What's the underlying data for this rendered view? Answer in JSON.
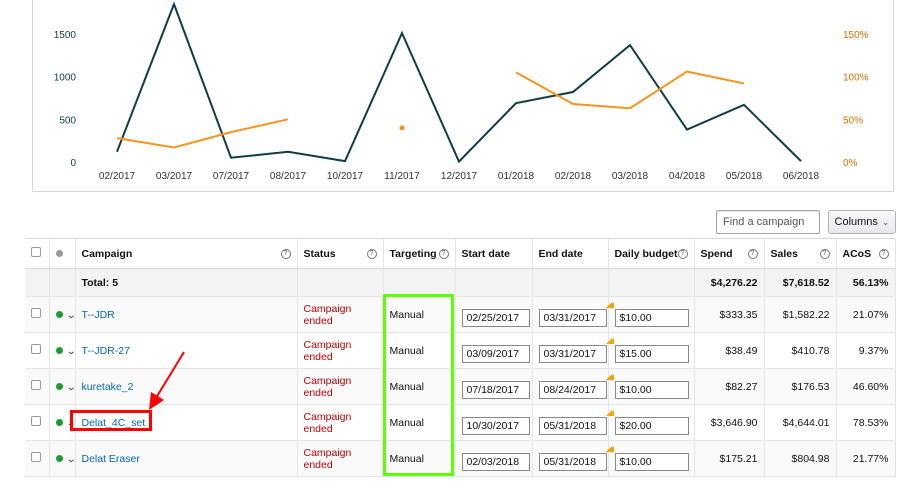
{
  "chart_data": {
    "type": "line",
    "categories": [
      "02/2017",
      "03/2017",
      "07/2017",
      "08/2017",
      "10/2017",
      "11/2017",
      "12/2017",
      "01/2018",
      "02/2018",
      "03/2018",
      "04/2018",
      "05/2018",
      "06/2018"
    ],
    "y_left_ticks": [
      "1500",
      "1000",
      "500",
      "0"
    ],
    "y_right_ticks": [
      "150%",
      "100%",
      "50%",
      "0%"
    ],
    "ylim_left": [
      0,
      1500
    ],
    "ylim_right": [
      0,
      150
    ],
    "series": [
      {
        "axis": "left",
        "color": "#0f3d45",
        "values": [
          120,
          1850,
          50,
          120,
          10,
          1510,
          5,
          690,
          820,
          1370,
          380,
          670,
          10
        ]
      },
      {
        "axis": "right",
        "color": "#f7941d",
        "values": [
          28,
          17,
          35,
          50,
          null,
          40,
          null,
          105,
          68,
          63,
          106,
          92,
          null
        ]
      }
    ]
  },
  "toolbar": {
    "search_placeholder": "Find a campaign",
    "columns_label": "Columns",
    "columns_chevron": "⌄"
  },
  "table": {
    "headers": {
      "campaign": "Campaign",
      "status": "Status",
      "targeting": "Targeting",
      "start_date": "Start date",
      "end_date": "End date",
      "daily_budget": "Daily budget",
      "spend": "Spend",
      "sales": "Sales",
      "acos": "ACoS"
    },
    "help_glyph": "?",
    "total": {
      "label": "Total: 5",
      "spend": "$4,276.22",
      "sales": "$7,618.52",
      "acos": "56.13%"
    },
    "rows": [
      {
        "name": "T--JDR",
        "status": "Campaign ended",
        "targeting": "Manual",
        "start": "02/25/2017",
        "end": "03/31/2017",
        "budget": "$10.00",
        "spend": "$333.35",
        "sales": "$1,582.22",
        "acos": "21.07%"
      },
      {
        "name": "T--JDR-27",
        "status": "Campaign ended",
        "targeting": "Manual",
        "start": "03/09/2017",
        "end": "03/31/2017",
        "budget": "$15.00",
        "spend": "$38.49",
        "sales": "$410.78",
        "acos": "9.37%"
      },
      {
        "name": "kuretake_2",
        "status": "Campaign ended",
        "targeting": "Manual",
        "start": "07/18/2017",
        "end": "08/24/2017",
        "budget": "$10.00",
        "spend": "$82.27",
        "sales": "$176.53",
        "acos": "46.60%"
      },
      {
        "name": "Delat_4C_set",
        "status": "Campaign ended",
        "targeting": "Manual",
        "start": "10/30/2017",
        "end": "05/31/2018",
        "budget": "$20.00",
        "spend": "$3,646.90",
        "sales": "$4,644.01",
        "acos": "78.53%"
      },
      {
        "name": "Delat Eraser",
        "status": "Campaign ended",
        "targeting": "Manual",
        "start": "02/03/2018",
        "end": "05/31/2018",
        "budget": "$10.00",
        "spend": "$175.21",
        "sales": "$804.98",
        "acos": "21.77%"
      }
    ],
    "row_chevron": "⌄"
  },
  "annotations": {
    "targeting_highlight_color": "#5eff00",
    "campaign_highlight_color": "#ff0000"
  }
}
